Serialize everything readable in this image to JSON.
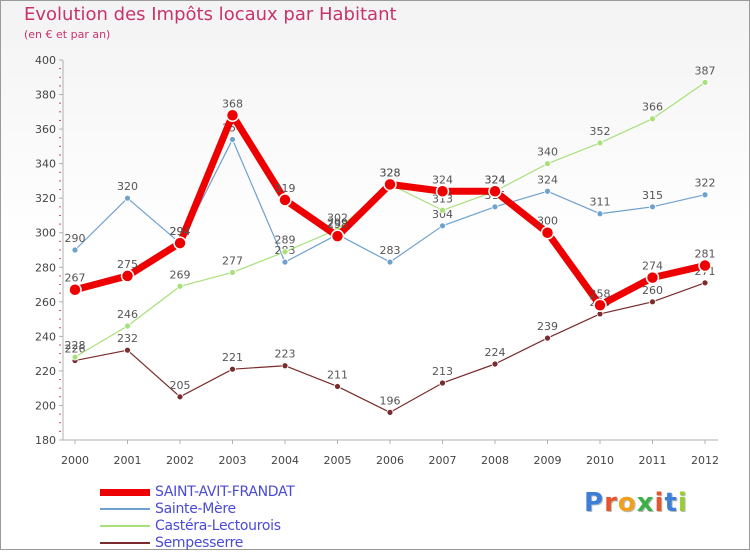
{
  "title": "Evolution des Impôts locaux par Habitant",
  "subtitle": "(en € et par an)",
  "chart_data": {
    "type": "line",
    "x": [
      "2000",
      "2001",
      "2002",
      "2003",
      "2004",
      "2005",
      "2006",
      "2007",
      "2008",
      "2009",
      "2010",
      "2011",
      "2012"
    ],
    "ylim": [
      180,
      400
    ],
    "yticks": [
      "180",
      "200",
      "220",
      "240",
      "260",
      "280",
      "300",
      "320",
      "340",
      "360",
      "380",
      "400"
    ],
    "grid": false,
    "legend_position": "bottom-left",
    "series": [
      {
        "name": "Sempesserre",
        "color": "#7a2b2b",
        "values": [
          226,
          232,
          205,
          221,
          223,
          211,
          196,
          213,
          224,
          239,
          253,
          260,
          271
        ]
      },
      {
        "name": "Sainte-Mère",
        "color": "#6fa1cf",
        "values": [
          290,
          320,
          294,
          354,
          283,
          299,
          283,
          304,
          315,
          324,
          311,
          315,
          322
        ]
      },
      {
        "name": "Castéra-Lectourois",
        "color": "#a8e07a",
        "values": [
          228,
          246,
          269,
          277,
          289,
          302,
          328,
          313,
          324,
          340,
          352,
          366,
          387
        ]
      },
      {
        "name": "SAINT-AVIT-FRANDAT",
        "color": "#ee0000",
        "values": [
          267,
          275,
          294,
          368,
          319,
          298,
          328,
          324,
          324,
          300,
          258,
          274,
          281
        ]
      }
    ]
  },
  "legend_order": [
    "SAINT-AVIT-FRANDAT",
    "Sainte-Mère",
    "Castéra-Lectourois",
    "Sempesserre"
  ],
  "logo": {
    "text": "Proxiti",
    "colors": [
      "#3d7fd6",
      "#e8542c",
      "#f0a020",
      "#3db04a",
      "#e8542c",
      "#3d7fd6",
      "#9acd32"
    ]
  }
}
